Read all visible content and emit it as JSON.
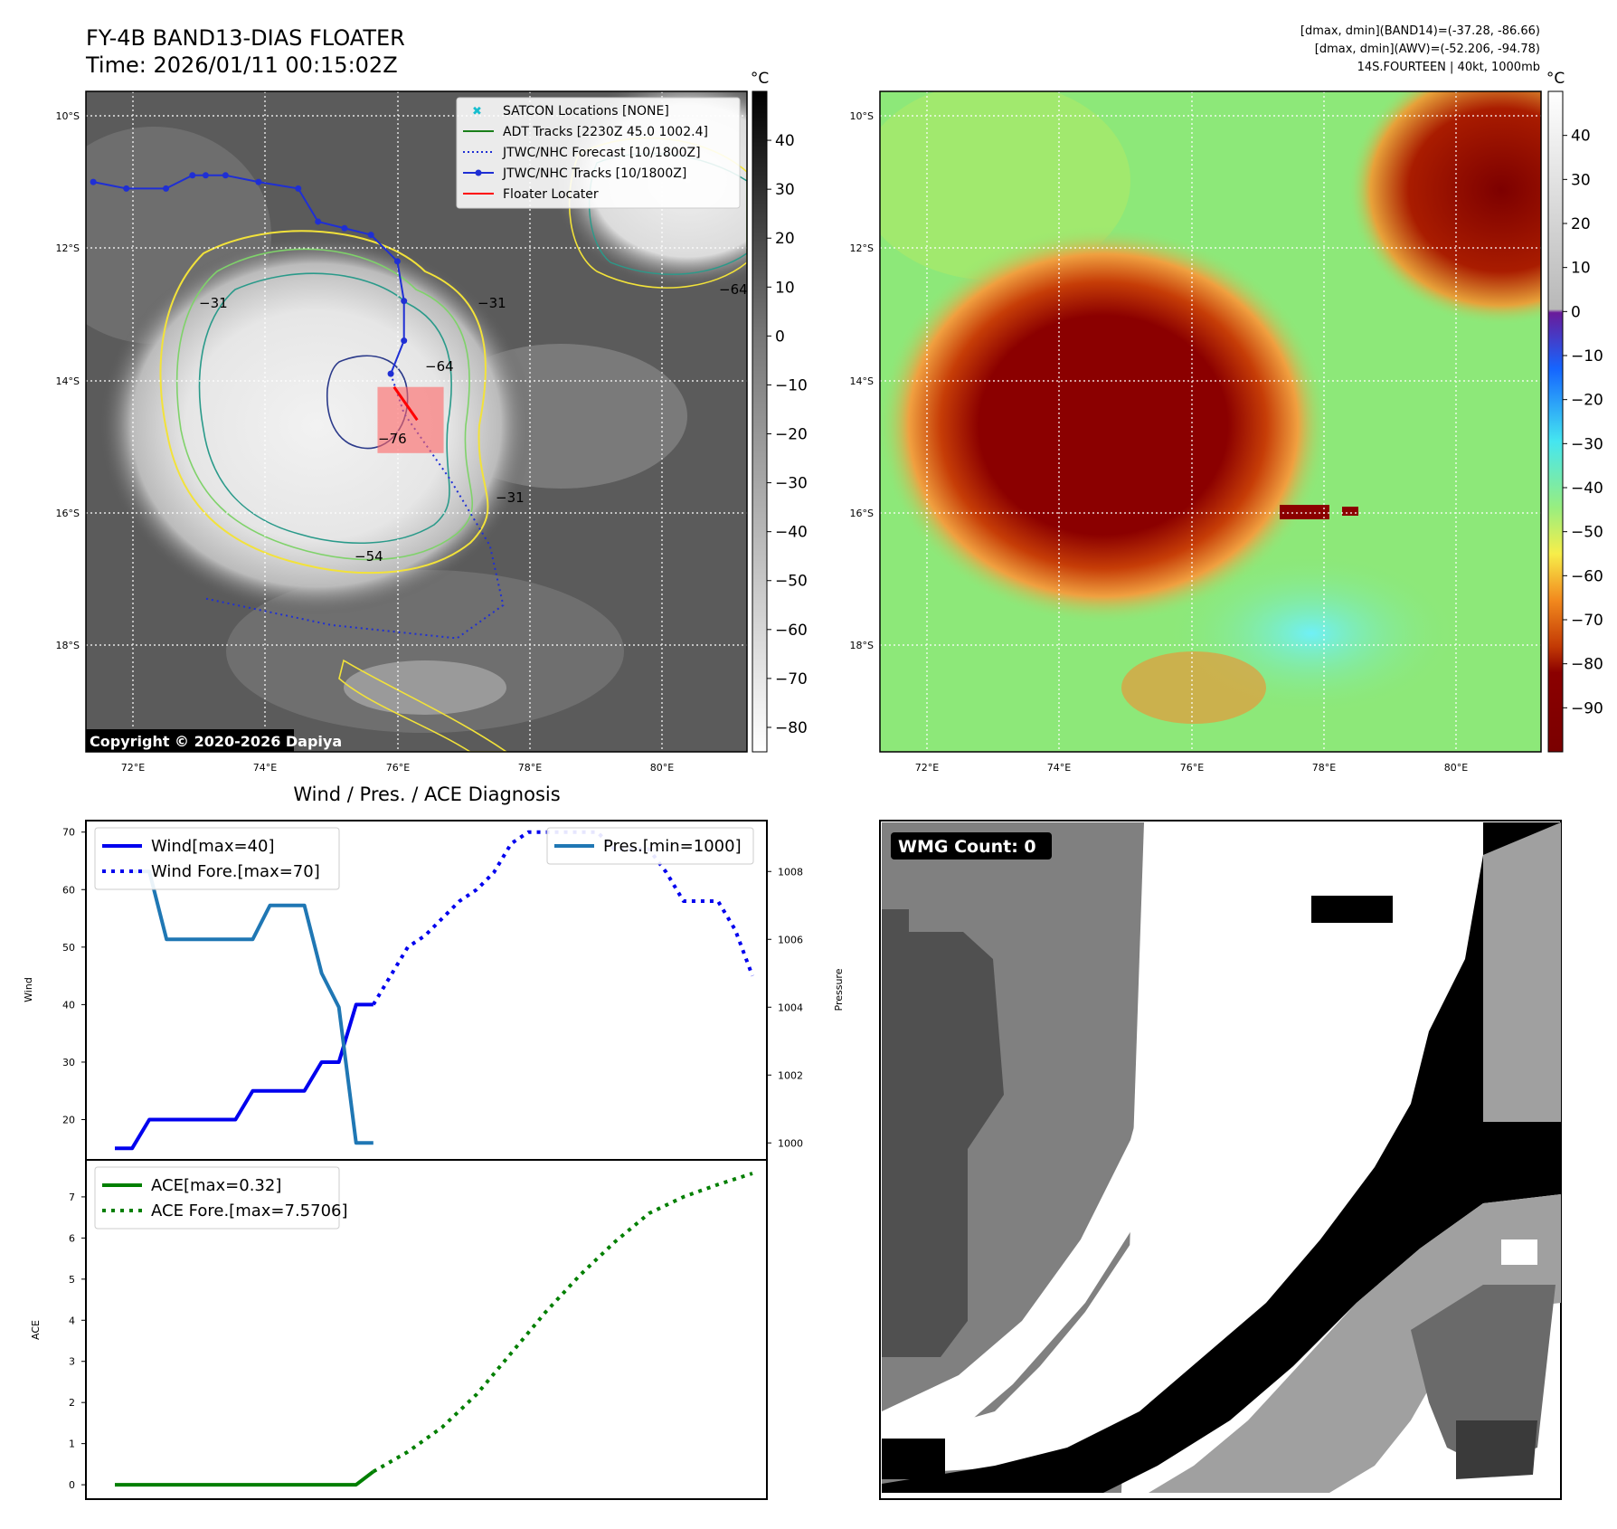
{
  "header": {
    "title": "FY-4B BAND13-DIAS FLOATER",
    "time": "Time: 2026/01/11 00:15:02Z",
    "right_line1": "[dmax, dmin](BAND14)=(-37.28, -86.66)",
    "right_line2": "[dmax, dmin](AWV)=(-52.206, -94.78)",
    "right_line3": "14S.FOURTEEN | 40kt, 1000mb",
    "unit_left": "°C",
    "unit_right": "°C"
  },
  "map": {
    "lat_labels": [
      "10°S",
      "12°S",
      "14°S",
      "16°S",
      "18°S"
    ],
    "lon_labels": [
      "72°E",
      "74°E",
      "76°E",
      "78°E",
      "80°E"
    ],
    "copyright": "Copyright © 2020-2026 Dapiya",
    "legend": [
      {
        "label": "SATCON Locations [NONE]",
        "color": "#17becf",
        "style": "x"
      },
      {
        "label": "ADT Tracks [2230Z 45.0 1002.4]",
        "color": "#1a7f1a",
        "style": "solid"
      },
      {
        "label": "JTWC/NHC Forecast [10/1800Z]",
        "color": "#1f2fd4",
        "style": "dotted"
      },
      {
        "label": "JTWC/NHC Tracks [10/1800Z]",
        "color": "#1f2fd4",
        "style": "marker"
      },
      {
        "label": "Floater Locater",
        "color": "#ff0000",
        "style": "solid"
      }
    ],
    "contour_labels": [
      "-31",
      "-31",
      "-31",
      "-54",
      "-64",
      "-64",
      "-76"
    ],
    "track_lonlat": [
      [
        71.4,
        11.0
      ],
      [
        71.9,
        11.1
      ],
      [
        72.5,
        11.1
      ],
      [
        72.9,
        10.9
      ],
      [
        73.1,
        10.9
      ],
      [
        73.4,
        10.9
      ],
      [
        73.9,
        11.0
      ],
      [
        74.5,
        11.1
      ],
      [
        74.8,
        11.6
      ],
      [
        75.2,
        11.7
      ],
      [
        75.6,
        11.8
      ],
      [
        76.0,
        12.2
      ],
      [
        76.1,
        12.8
      ],
      [
        76.1,
        13.4
      ],
      [
        75.9,
        13.9
      ]
    ],
    "forecast_lonlat": [
      [
        75.9,
        13.9
      ],
      [
        76.1,
        14.5
      ],
      [
        76.8,
        15.5
      ],
      [
        77.4,
        16.5
      ],
      [
        77.6,
        17.4
      ],
      [
        76.9,
        17.9
      ],
      [
        75.0,
        17.7
      ],
      [
        73.1,
        17.3
      ]
    ],
    "floater_box_lonlat": [
      75.7,
      14.1,
      76.7,
      15.1
    ],
    "colorbar_left": {
      "ticks": [
        40,
        30,
        20,
        10,
        0,
        -10,
        -20,
        -30,
        -40,
        -50,
        -60,
        -70,
        -80
      ],
      "range": [
        50,
        -85
      ]
    },
    "colorbar_right": {
      "ticks": [
        40,
        30,
        20,
        10,
        0,
        -10,
        -20,
        -30,
        -40,
        -50,
        -60,
        -70,
        -80,
        -90
      ],
      "range": [
        50,
        -100
      ]
    },
    "wmg_label": "WMG Count: 0"
  },
  "chart_data": [
    {
      "type": "line",
      "title": "Wind / Pres. / ACE Diagnosis",
      "ylabel": "Wind",
      "y2label": "Pressure",
      "ylim": [
        13,
        72
      ],
      "y2lim": [
        999.5,
        1009.5
      ],
      "yticks": [
        20,
        30,
        40,
        50,
        60,
        70
      ],
      "y2ticks": [
        1000,
        1002,
        1004,
        1006,
        1008
      ],
      "series": [
        {
          "name": "Wind[max=40]",
          "axis": "left",
          "style": "solid",
          "color": "#0000ee",
          "x": [
            0,
            1,
            2,
            3,
            4,
            5,
            6,
            7,
            8,
            9,
            10,
            11,
            12,
            13,
            14,
            15
          ],
          "values": [
            15,
            15,
            20,
            20,
            20,
            20,
            20,
            20,
            25,
            25,
            25,
            25,
            30,
            30,
            40,
            40
          ]
        },
        {
          "name": "Wind Fore.[max=70]",
          "axis": "left",
          "style": "dotted",
          "color": "#0000ee",
          "x": [
            15,
            16,
            17,
            18,
            19,
            20,
            21,
            22,
            23,
            24,
            25,
            26,
            27,
            28,
            29,
            30,
            31,
            32,
            33,
            34,
            35,
            36,
            37
          ],
          "values": [
            40,
            45,
            50,
            52,
            55,
            58,
            60,
            63,
            68,
            70,
            70,
            70,
            70,
            70,
            67,
            67,
            67,
            63,
            58,
            58,
            58,
            53,
            45
          ]
        },
        {
          "name": "Pres.[min=1000]",
          "axis": "right",
          "style": "solid",
          "color": "#1f77b4",
          "x": [
            1,
            2,
            3,
            4,
            5,
            6,
            7,
            8,
            9,
            10,
            11,
            12,
            13,
            14,
            15
          ],
          "values": [
            1008,
            1008,
            1006,
            1006,
            1006,
            1006,
            1006,
            1006,
            1007,
            1007,
            1007,
            1005,
            1004,
            1000,
            1000
          ]
        }
      ]
    },
    {
      "type": "line",
      "ylabel": "ACE",
      "ylim": [
        -0.35,
        7.9
      ],
      "yticks": [
        0,
        1,
        2,
        3,
        4,
        5,
        6,
        7
      ],
      "series": [
        {
          "name": "ACE[max=0.32]",
          "style": "solid",
          "color": "#007f00",
          "x": [
            0,
            14,
            15
          ],
          "values": [
            0,
            0,
            0.32
          ]
        },
        {
          "name": "ACE Fore.[max=7.5706]",
          "style": "dotted",
          "color": "#007f00",
          "x": [
            15,
            17,
            19,
            21,
            23,
            25,
            27,
            29,
            31,
            33,
            35,
            37
          ],
          "values": [
            0.32,
            0.8,
            1.4,
            2.2,
            3.2,
            4.2,
            5.1,
            5.9,
            6.6,
            7.0,
            7.3,
            7.5706
          ]
        }
      ]
    }
  ]
}
